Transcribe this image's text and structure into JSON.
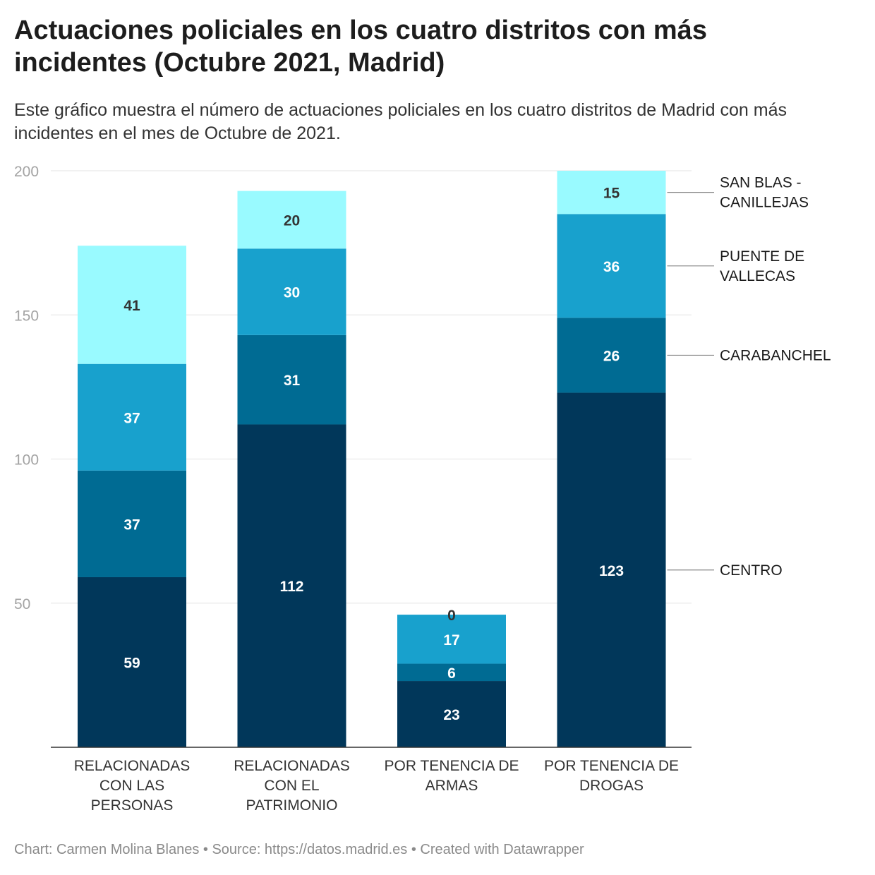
{
  "title": "Actuaciones policiales en los cuatro distritos con más incidentes (Octubre 2021, Madrid)",
  "subtitle": "Este gráfico muestra el número de actuaciones policiales en los cuatro distritos de Madrid con más incidentes en el mes de Octubre de 2021.",
  "footer": "Chart: Carmen Molina Blanes • Source: https://datos.madrid.es • Created with Datawrapper",
  "chart_data": {
    "type": "bar",
    "stacked": true,
    "categories": [
      [
        "RELACIONADAS",
        "CON LAS",
        "PERSONAS"
      ],
      [
        "RELACIONADAS",
        "CON EL",
        "PATRIMONIO"
      ],
      [
        "POR TENENCIA DE",
        "ARMAS"
      ],
      [
        "POR TENENCIA DE",
        "DROGAS"
      ]
    ],
    "series": [
      {
        "name": [
          "CENTRO"
        ],
        "color": "#01375a",
        "label_color": "#ffffff",
        "values": [
          59,
          112,
          23,
          123
        ]
      },
      {
        "name": [
          "CARABANCHEL"
        ],
        "color": "#006b93",
        "label_color": "#ffffff",
        "values": [
          37,
          31,
          6,
          26
        ]
      },
      {
        "name": [
          "PUENTE DE",
          "VALLECAS"
        ],
        "color": "#18a1cd",
        "label_color": "#ffffff",
        "values": [
          37,
          30,
          17,
          36
        ]
      },
      {
        "name": [
          "SAN BLAS -",
          "CANILLEJAS"
        ],
        "color": "#99faff",
        "label_color": "#333333",
        "values": [
          41,
          20,
          0,
          15
        ]
      }
    ],
    "yticks": [
      50,
      100,
      150,
      200
    ],
    "ylim": [
      0,
      200
    ],
    "grid": true,
    "legend": "right, inline labels"
  }
}
